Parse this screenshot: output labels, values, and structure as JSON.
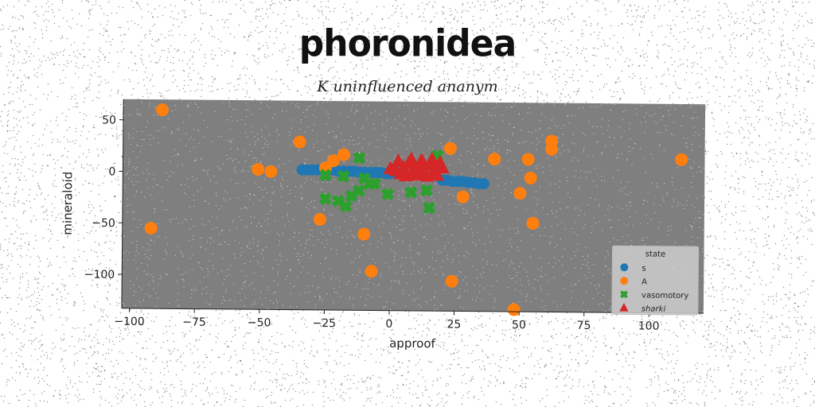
{
  "title": "phoronidea",
  "subtitle": "K uninfluenced ananym",
  "chart_data": {
    "type": "scatter",
    "xlabel": "approof",
    "ylabel": "mineraloid",
    "xlim": [
      -103,
      121
    ],
    "ylim": [
      -133,
      70
    ],
    "xticks": [
      -100,
      -75,
      -50,
      -25,
      0,
      25,
      50,
      75,
      100
    ],
    "yticks": [
      50,
      0,
      -50,
      -100
    ],
    "grid": false,
    "legend_title": "state",
    "legend_position": "lower-right",
    "series": [
      {
        "name": "s",
        "marker": "circle",
        "color": "#1f77b4",
        "points": [
          [
            -34,
            3
          ],
          [
            -32,
            3
          ],
          [
            -30,
            3
          ],
          [
            -28,
            3
          ],
          [
            -26,
            3
          ],
          [
            -24,
            3
          ],
          [
            -22,
            3
          ],
          [
            -20,
            2
          ],
          [
            -18,
            2
          ],
          [
            -16,
            2
          ],
          [
            -14,
            2
          ],
          [
            -12,
            1
          ],
          [
            -10,
            1
          ],
          [
            -8,
            1
          ],
          [
            -6,
            1
          ],
          [
            -4,
            1
          ],
          [
            -2,
            0
          ],
          [
            0,
            0
          ],
          [
            2,
            0
          ],
          [
            4,
            0
          ],
          [
            20,
            -6
          ],
          [
            22,
            -6
          ],
          [
            24,
            -7
          ],
          [
            26,
            -7
          ],
          [
            28,
            -7
          ],
          [
            30,
            -8
          ],
          [
            32,
            -8
          ],
          [
            34,
            -9
          ],
          [
            36,
            -9
          ]
        ]
      },
      {
        "name": "A",
        "marker": "circle",
        "color": "#ff7f0e",
        "points": [
          [
            -88,
            60
          ],
          [
            -35,
            30
          ],
          [
            -18,
            18
          ],
          [
            -22,
            12
          ],
          [
            -25,
            5
          ],
          [
            -51,
            3
          ],
          [
            -46,
            1
          ],
          [
            -92,
            -55
          ],
          [
            -27,
            -45
          ],
          [
            -10,
            -59
          ],
          [
            -7,
            -95
          ],
          [
            23,
            25
          ],
          [
            40,
            15
          ],
          [
            53,
            15
          ],
          [
            62,
            33
          ],
          [
            62,
            25
          ],
          [
            54,
            -3
          ],
          [
            50,
            -18
          ],
          [
            28,
            -22
          ],
          [
            55,
            -47
          ],
          [
            24,
            -104
          ],
          [
            48,
            -131
          ],
          [
            112,
            16
          ]
        ]
      },
      {
        "name": "vasomotory",
        "marker": "x",
        "color": "#2ca02c",
        "points": [
          [
            -12,
            15
          ],
          [
            -25,
            -2
          ],
          [
            -18,
            -3
          ],
          [
            -10,
            -5
          ],
          [
            -8,
            -10
          ],
          [
            -12,
            -17
          ],
          [
            -15,
            -22
          ],
          [
            -25,
            -25
          ],
          [
            -20,
            -27
          ],
          [
            -17,
            -32
          ],
          [
            -6,
            -10
          ],
          [
            -1,
            -20
          ],
          [
            8,
            -18
          ],
          [
            14,
            -16
          ],
          [
            15,
            -33
          ],
          [
            18,
            18
          ]
        ]
      },
      {
        "name": "sharki",
        "marker": "triangle",
        "color": "#d62728",
        "points": [
          [
            0,
            5
          ],
          [
            2,
            3
          ],
          [
            3,
            12
          ],
          [
            5,
            6
          ],
          [
            6,
            -2
          ],
          [
            7,
            10
          ],
          [
            8,
            14
          ],
          [
            9,
            3
          ],
          [
            10,
            -1
          ],
          [
            11,
            8
          ],
          [
            12,
            13
          ],
          [
            13,
            2
          ],
          [
            14,
            -2
          ],
          [
            15,
            9
          ],
          [
            16,
            14
          ],
          [
            17,
            4
          ],
          [
            18,
            -1
          ],
          [
            19,
            11
          ],
          [
            20,
            6
          ],
          [
            4,
            0
          ],
          [
            12,
            0
          ],
          [
            16,
            0
          ]
        ]
      }
    ]
  }
}
